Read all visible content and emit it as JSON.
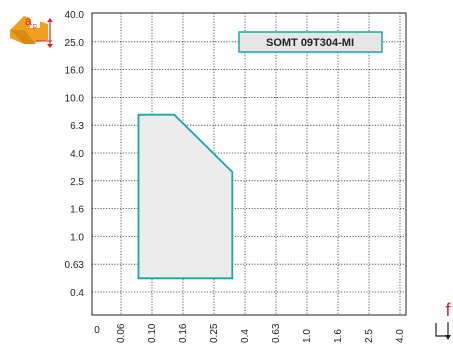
{
  "chart_data": {
    "type": "area",
    "title": "",
    "xlabel": "f",
    "ylabel": "ap",
    "label_box": "SOMT 09T304-MI",
    "x_ticks": [
      "0.06",
      "0.10",
      "0.16",
      "0.25",
      "0.4",
      "0.63",
      "1.0",
      "1.6",
      "2.5",
      "4.0"
    ],
    "y_ticks": [
      "40.0",
      "25.0",
      "16.0",
      "10.0",
      "6.3",
      "4.0",
      "2.5",
      "1.6",
      "1.0",
      "0.63",
      "0.4"
    ],
    "origin_label": "0",
    "x_scale": "log",
    "y_scale": "log",
    "grid": "dotted",
    "region": {
      "name": "",
      "points": [
        {
          "x": 0.08,
          "ap": 0.5
        },
        {
          "x": 0.08,
          "ap": 7.5
        },
        {
          "x": 0.14,
          "ap": 7.5
        },
        {
          "x": 0.33,
          "ap": 2.9
        },
        {
          "x": 0.33,
          "ap": 0.5
        }
      ],
      "fill": "#ececec",
      "stroke": "#1aa7a0"
    },
    "colors": {
      "icon_orange": "#f0a020",
      "icon_red": "#d7262b",
      "grid": "#333333",
      "axis": "#222222",
      "box_fill": "#e6e6e6",
      "box_border": "#1aa7a0"
    },
    "icons": {
      "ap": "ap-depth-of-cut-icon",
      "feed": "feed-direction-icon"
    },
    "ap_icon_label": "a",
    "ap_icon_subscript": "p"
  }
}
